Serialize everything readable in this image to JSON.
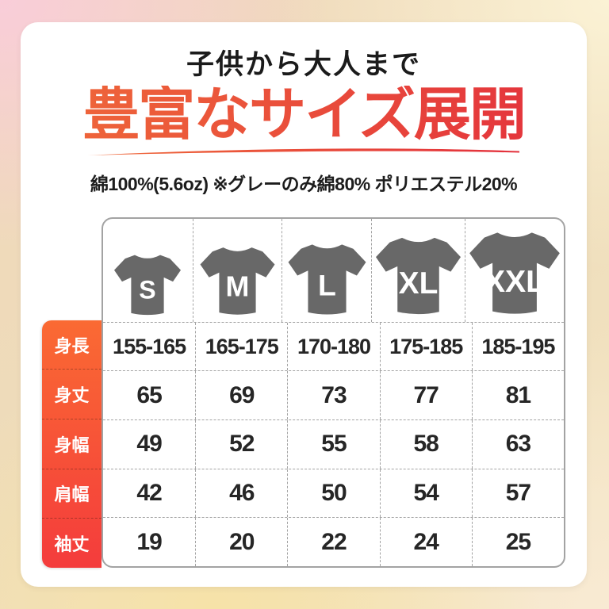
{
  "header": {
    "subtitle": "子供から大人まで",
    "title": "豊富なサイズ展開",
    "note": "綿100%(5.6oz) ※グレーのみ綿80% ポリエステル20%"
  },
  "colors": {
    "title_gradient_start": "#ef6a3a",
    "title_gradient_end": "#e3303c",
    "label_gradient_start": "#fa6a33",
    "label_gradient_end": "#f43c3c",
    "shirt_gray": "#686868",
    "table_border": "#a3a3a3",
    "text_dark": "#1d1d1d"
  },
  "shirts": [
    {
      "label": "S",
      "scale": 0.74,
      "letter_size": 42
    },
    {
      "label": "M",
      "scale": 0.83,
      "letter_size": 42
    },
    {
      "label": "L",
      "scale": 0.86,
      "letter_size": 42
    },
    {
      "label": "XL",
      "scale": 0.94,
      "letter_size": 40
    },
    {
      "label": "XXL",
      "scale": 1.0,
      "letter_size": 38
    }
  ],
  "chart_data": {
    "type": "table",
    "title": "豊富なサイズ展開",
    "subtitle": "子供から大人まで",
    "note": "綿100%(5.6oz) ※グレーのみ綿80% ポリエステル20%",
    "columns": [
      "S",
      "M",
      "L",
      "XL",
      "XXL"
    ],
    "row_labels": [
      "身長",
      "身丈",
      "身幅",
      "肩幅",
      "袖丈"
    ],
    "rows": [
      [
        "155-165",
        "165-175",
        "170-180",
        "175-185",
        "185-195"
      ],
      [
        "65",
        "69",
        "73",
        "77",
        "81"
      ],
      [
        "49",
        "52",
        "55",
        "58",
        "63"
      ],
      [
        "42",
        "46",
        "50",
        "54",
        "57"
      ],
      [
        "19",
        "20",
        "22",
        "24",
        "25"
      ]
    ]
  }
}
